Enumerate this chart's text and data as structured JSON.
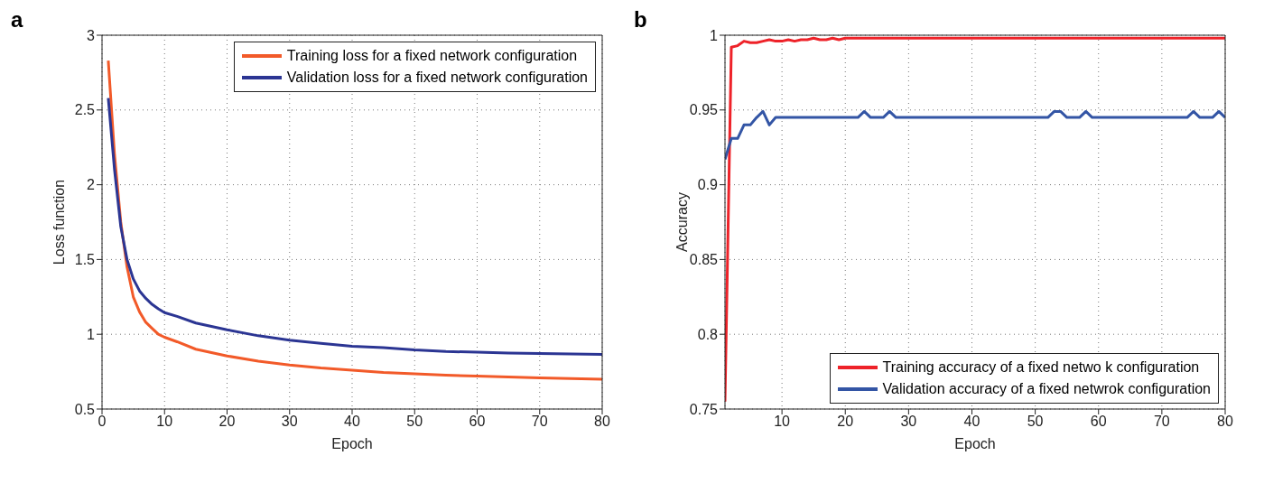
{
  "chart_data": [
    {
      "type": "line",
      "title": "a",
      "xlabel": "Epoch",
      "ylabel": "Loss function",
      "xlim": [
        0,
        80
      ],
      "xticks": [
        0,
        10,
        20,
        30,
        40,
        50,
        60,
        70,
        80
      ],
      "ylim": [
        0.5,
        3
      ],
      "yticks": [
        0.5,
        1,
        1.5,
        2,
        2.5,
        3
      ],
      "grid": true,
      "legend": "top right",
      "line_style": "solid",
      "marker": "none",
      "series": [
        {
          "name": "Training loss for a fixed network configuration",
          "color": "#f25a29",
          "x": [
            1,
            2,
            3,
            4,
            5,
            6,
            7,
            8,
            9,
            10,
            12,
            15,
            20,
            25,
            30,
            35,
            40,
            45,
            50,
            55,
            60,
            65,
            70,
            75,
            80
          ],
          "values": [
            2.83,
            2.2,
            1.75,
            1.45,
            1.25,
            1.15,
            1.08,
            1.04,
            1.0,
            0.98,
            0.95,
            0.9,
            0.855,
            0.82,
            0.795,
            0.775,
            0.76,
            0.745,
            0.735,
            0.727,
            0.72,
            0.714,
            0.708,
            0.704,
            0.7
          ]
        },
        {
          "name": "Validation loss for a fixed network configuration",
          "color": "#2b3593",
          "x": [
            1,
            2,
            3,
            4,
            5,
            6,
            7,
            8,
            9,
            10,
            12,
            15,
            20,
            25,
            30,
            35,
            40,
            45,
            50,
            55,
            60,
            65,
            70,
            75,
            80
          ],
          "values": [
            2.58,
            2.1,
            1.72,
            1.5,
            1.37,
            1.29,
            1.24,
            1.2,
            1.17,
            1.145,
            1.12,
            1.075,
            1.03,
            0.99,
            0.96,
            0.94,
            0.92,
            0.91,
            0.895,
            0.885,
            0.88,
            0.875,
            0.872,
            0.868,
            0.865
          ]
        }
      ]
    },
    {
      "type": "line",
      "title": "b",
      "xlabel": "Epoch",
      "ylabel": "Accuracy",
      "xlim": [
        1,
        80
      ],
      "xticks": [
        10,
        20,
        30,
        40,
        50,
        60,
        70,
        80
      ],
      "ylim": [
        0.75,
        1
      ],
      "yticks": [
        0.75,
        0.8,
        0.85,
        0.9,
        0.95,
        1
      ],
      "grid": true,
      "legend": "bottom right",
      "line_style": "solid",
      "marker": "none",
      "series": [
        {
          "name": "Training accuracy of a fixed netwo k configuration",
          "color": "#ee2229",
          "x": [
            1,
            2,
            3,
            4,
            5,
            6,
            7,
            8,
            9,
            10,
            11,
            12,
            13,
            14,
            15,
            16,
            17,
            18,
            19,
            20,
            80
          ],
          "values": [
            0.755,
            0.992,
            0.993,
            0.996,
            0.995,
            0.995,
            0.996,
            0.997,
            0.996,
            0.996,
            0.997,
            0.996,
            0.997,
            0.997,
            0.998,
            0.997,
            0.997,
            0.998,
            0.997,
            0.998,
            0.998
          ]
        },
        {
          "name": "Validation accuracy of a fixed netwrok configuration",
          "color": "#3355a5",
          "x": [
            1,
            2,
            3,
            4,
            5,
            6,
            7,
            8,
            9,
            22,
            23,
            24,
            26,
            27,
            28,
            52,
            53,
            54,
            55,
            57,
            58,
            59,
            74,
            75,
            76,
            78,
            79,
            80
          ],
          "values": [
            0.917,
            0.931,
            0.931,
            0.94,
            0.94,
            0.945,
            0.949,
            0.94,
            0.945,
            0.945,
            0.949,
            0.945,
            0.945,
            0.949,
            0.945,
            0.945,
            0.949,
            0.949,
            0.945,
            0.945,
            0.949,
            0.945,
            0.945,
            0.949,
            0.945,
            0.945,
            0.949,
            0.945
          ]
        }
      ]
    }
  ]
}
